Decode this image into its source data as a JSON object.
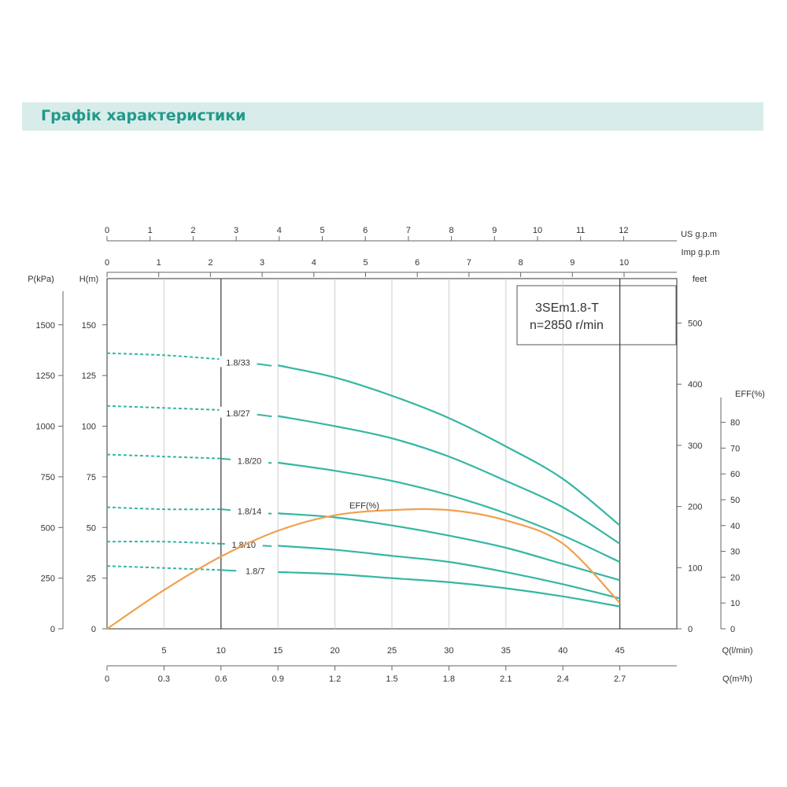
{
  "page": {
    "title": "Графік характеристики"
  },
  "colors": {
    "banner_bg": "#d8ede9",
    "title": "#22998c",
    "curve": "#35b6a3",
    "eff": "#f0a050",
    "axis": "#666666"
  },
  "chart_data": {
    "type": "line",
    "model": "3SEm1.8-T",
    "speed": "n=2850 r/min",
    "grid": true,
    "x": {
      "label": "Q(l/min)",
      "range": [
        0,
        50
      ],
      "ticks": [
        5,
        10,
        15,
        20,
        25,
        30,
        35,
        40,
        45
      ],
      "tick_labels": [
        "5",
        "10",
        "15",
        "20",
        "25",
        "30",
        "35",
        "40",
        "45"
      ]
    },
    "x_m3h": {
      "label": "Q(m³/h)",
      "ticks": [
        "0",
        "0.3",
        "0.6",
        "0.9",
        "1.2",
        "1.5",
        "1.8",
        "2.1",
        "2.4",
        "2.7"
      ]
    },
    "x_usgpm": {
      "label": "US  g.p.m",
      "ticks": [
        "0",
        "1",
        "2",
        "3",
        "4",
        "5",
        "6",
        "7",
        "8",
        "9",
        "10",
        "11",
        "12"
      ]
    },
    "x_impgpm": {
      "label": "Imp  g.p.m",
      "ticks": [
        "0",
        "1",
        "2",
        "3",
        "4",
        "5",
        "6",
        "7",
        "8",
        "9",
        "10"
      ]
    },
    "y_head": {
      "label": "H(m)",
      "range": [
        0,
        170
      ],
      "ticks": [
        0,
        25,
        50,
        75,
        100,
        125,
        150
      ],
      "tick_labels": [
        "0",
        "25",
        "50",
        "75",
        "100",
        "125",
        "150"
      ]
    },
    "y_pressure": {
      "label": "P(kPa)",
      "tick_labels": [
        "0",
        "250",
        "500",
        "750",
        "1000",
        "1250",
        "1500"
      ]
    },
    "y_feet": {
      "label": "feet",
      "ticks": [
        0,
        100,
        200,
        300,
        400,
        500
      ],
      "tick_labels": [
        "0",
        "100",
        "200",
        "300",
        "400",
        "500"
      ]
    },
    "y_eff": {
      "label": "EFF(%)",
      "ticks": [
        0,
        10,
        20,
        30,
        40,
        50,
        60,
        70,
        80
      ],
      "tick_labels": [
        "0",
        "10",
        "20",
        "30",
        "40",
        "50",
        "60",
        "70",
        "80"
      ]
    },
    "series": [
      {
        "name": "1.8/33",
        "label_x": 11.5,
        "dashed": {
          "x": [
            0,
            5,
            10
          ],
          "y": [
            136,
            135,
            133
          ]
        },
        "solid": {
          "x": [
            15,
            20,
            25,
            30,
            35,
            40,
            45
          ],
          "y": [
            130,
            124,
            115,
            104,
            90,
            74,
            51
          ]
        }
      },
      {
        "name": "1.8/27",
        "label_x": 11.5,
        "dashed": {
          "x": [
            0,
            5,
            10
          ],
          "y": [
            110,
            109,
            108
          ]
        },
        "solid": {
          "x": [
            15,
            20,
            25,
            30,
            35,
            40,
            45
          ],
          "y": [
            105,
            100,
            94,
            85,
            73,
            60,
            42
          ]
        }
      },
      {
        "name": "1.8/20",
        "label_x": 12.5,
        "dashed": {
          "x": [
            0,
            5,
            10
          ],
          "y": [
            86,
            85,
            84
          ]
        },
        "solid": {
          "x": [
            15,
            20,
            25,
            30,
            35,
            40,
            45
          ],
          "y": [
            82,
            78,
            73,
            66,
            57,
            46,
            33
          ]
        }
      },
      {
        "name": "1.8/14",
        "label_x": 12.5,
        "dashed": {
          "x": [
            0,
            5,
            10
          ],
          "y": [
            60,
            59,
            59
          ]
        },
        "solid": {
          "x": [
            15,
            20,
            25,
            30,
            35,
            40,
            45
          ],
          "y": [
            57,
            55,
            51,
            46,
            40,
            32,
            24
          ]
        }
      },
      {
        "name": "1.8/10",
        "label_x": 12.0,
        "dashed": {
          "x": [
            0,
            5,
            10
          ],
          "y": [
            43,
            43,
            42
          ]
        },
        "solid": {
          "x": [
            15,
            20,
            25,
            30,
            35,
            40,
            45
          ],
          "y": [
            41,
            39,
            36,
            33,
            28,
            22,
            15
          ]
        }
      },
      {
        "name": "1.8/7",
        "label_x": 13.0,
        "dashed": {
          "x": [
            0,
            5,
            10
          ],
          "y": [
            31,
            30,
            29
          ]
        },
        "solid": {
          "x": [
            15,
            20,
            25,
            30,
            35,
            40,
            45
          ],
          "y": [
            28,
            27,
            25,
            23,
            20,
            16,
            11
          ]
        }
      }
    ],
    "efficiency": {
      "name": "EFF(%)",
      "x": [
        0,
        5,
        10,
        15,
        20,
        25,
        30,
        35,
        40,
        45
      ],
      "y": [
        0,
        15,
        28,
        38,
        44,
        46,
        46,
        42,
        33,
        10
      ]
    }
  }
}
